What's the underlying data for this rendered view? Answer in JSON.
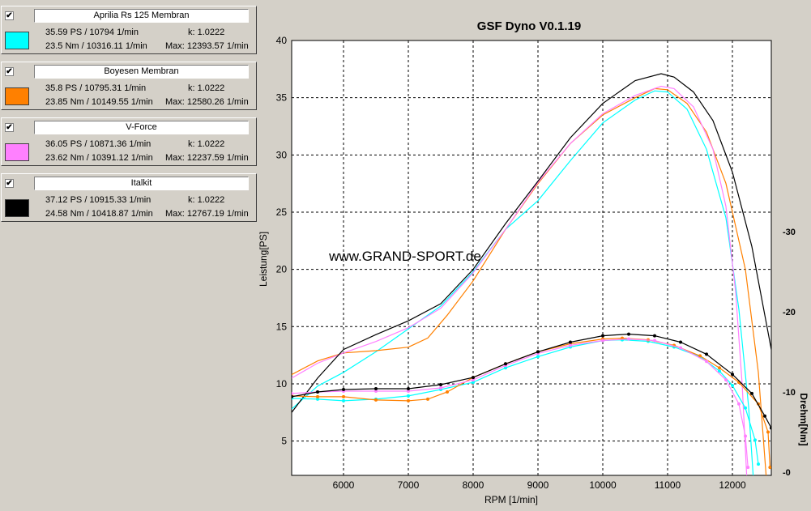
{
  "legend": [
    {
      "name": "Aprilia Rs 125 Membran",
      "checked": "✔",
      "power": "35.59 PS / 10794 1/min",
      "k": "k: 1.0222",
      "torque": "23.5 Nm / 10316.11 1/min",
      "max": "Max: 12393.57 1/min",
      "color": "#00ffff"
    },
    {
      "name": "Boyesen Membran",
      "checked": "✔",
      "power": "35.8 PS / 10795.31 1/min",
      "k": "k: 1.0222",
      "torque": "23.85 Nm / 10149.55 1/min",
      "max": "Max: 12580.26 1/min",
      "color": "#ff8000"
    },
    {
      "name": "V-Force",
      "checked": "✔",
      "power": "36.05 PS / 10871.36 1/min",
      "k": "k: 1.0222",
      "torque": "23.62 Nm / 10391.12 1/min",
      "max": "Max: 12237.59 1/min",
      "color": "#ff80ff"
    },
    {
      "name": "Italkit",
      "checked": "✔",
      "power": "37.12 PS / 10915.33 1/min",
      "k": "k: 1.0222",
      "torque": "24.58 Nm / 10418.87 1/min",
      "max": "Max: 12767.19 1/min",
      "color": "#000000"
    }
  ],
  "chart_data": {
    "type": "line",
    "title": "GSF Dyno V0.1.19",
    "xlabel": "RPM [1/min]",
    "ylabel": "Leistung[PS]",
    "y2label": "Drehm[Nm]",
    "watermark": "www.GRAND-SPORT.de",
    "xlim": [
      5200,
      12600
    ],
    "ylim": [
      2,
      40
    ],
    "y2lim": [
      -0.4,
      53.8
    ],
    "xticks": [
      "6000",
      "7000",
      "8000",
      "9000",
      "10000",
      "11000",
      "12000"
    ],
    "yticks": [
      "5",
      "10",
      "15",
      "20",
      "25",
      "30",
      "35",
      "40"
    ],
    "y2ticks": [
      "-0",
      "-10",
      "-20",
      "-30"
    ],
    "grid": true,
    "power_series": [
      {
        "color": "#00ffff",
        "points": [
          [
            5200,
            7.8
          ],
          [
            5600,
            9.8
          ],
          [
            6000,
            11.0
          ],
          [
            6500,
            12.8
          ],
          [
            7000,
            14.8
          ],
          [
            7500,
            16.8
          ],
          [
            8000,
            19.8
          ],
          [
            8500,
            23.5
          ],
          [
            9000,
            26.0
          ],
          [
            9500,
            29.5
          ],
          [
            10000,
            32.8
          ],
          [
            10500,
            34.8
          ],
          [
            10800,
            35.6
          ],
          [
            11000,
            35.5
          ],
          [
            11300,
            34.0
          ],
          [
            11600,
            30.5
          ],
          [
            11900,
            24.5
          ],
          [
            12100,
            16.5
          ],
          [
            12250,
            8.0
          ],
          [
            12320,
            2.0
          ]
        ]
      },
      {
        "color": "#ff8000",
        "points": [
          [
            5200,
            10.8
          ],
          [
            5600,
            12.0
          ],
          [
            6000,
            12.7
          ],
          [
            6500,
            12.9
          ],
          [
            7000,
            13.2
          ],
          [
            7300,
            14.0
          ],
          [
            7600,
            16.0
          ],
          [
            8000,
            19.0
          ],
          [
            8500,
            23.5
          ],
          [
            9000,
            27.5
          ],
          [
            9500,
            31.0
          ],
          [
            10000,
            33.5
          ],
          [
            10500,
            35.0
          ],
          [
            10800,
            35.8
          ],
          [
            11000,
            35.7
          ],
          [
            11300,
            34.5
          ],
          [
            11600,
            32.0
          ],
          [
            11900,
            27.5
          ],
          [
            12200,
            20.0
          ],
          [
            12400,
            11.0
          ],
          [
            12520,
            2.0
          ]
        ]
      },
      {
        "color": "#ff80ff",
        "points": [
          [
            5200,
            10.5
          ],
          [
            5600,
            11.8
          ],
          [
            6000,
            12.7
          ],
          [
            6500,
            13.7
          ],
          [
            7000,
            14.9
          ],
          [
            7500,
            16.6
          ],
          [
            8000,
            19.7
          ],
          [
            8500,
            23.5
          ],
          [
            9000,
            27.6
          ],
          [
            9500,
            31.0
          ],
          [
            10000,
            33.6
          ],
          [
            10500,
            35.2
          ],
          [
            10900,
            36.0
          ],
          [
            11100,
            35.8
          ],
          [
            11400,
            34.2
          ],
          [
            11700,
            30.5
          ],
          [
            11900,
            25.5
          ],
          [
            12050,
            18.0
          ],
          [
            12150,
            10.0
          ],
          [
            12220,
            2.0
          ]
        ]
      },
      {
        "color": "#000000",
        "points": [
          [
            5200,
            7.5
          ],
          [
            5600,
            10.5
          ],
          [
            6000,
            13.0
          ],
          [
            6500,
            14.3
          ],
          [
            7000,
            15.5
          ],
          [
            7500,
            17.0
          ],
          [
            8000,
            20.0
          ],
          [
            8500,
            24.0
          ],
          [
            9000,
            27.7
          ],
          [
            9500,
            31.5
          ],
          [
            10000,
            34.5
          ],
          [
            10500,
            36.5
          ],
          [
            10900,
            37.1
          ],
          [
            11100,
            36.8
          ],
          [
            11400,
            35.5
          ],
          [
            11700,
            33.0
          ],
          [
            12000,
            28.5
          ],
          [
            12300,
            22.0
          ],
          [
            12500,
            16.0
          ],
          [
            12600,
            13.0
          ]
        ]
      }
    ],
    "torque_series": [
      {
        "color": "#00ffff",
        "points": [
          [
            5200,
            9.2
          ],
          [
            5600,
            9.1
          ],
          [
            6000,
            8.9
          ],
          [
            6500,
            9.1
          ],
          [
            7000,
            9.5
          ],
          [
            7500,
            10.3
          ],
          [
            8000,
            11.2
          ],
          [
            8500,
            13.0
          ],
          [
            9000,
            14.4
          ],
          [
            9500,
            15.6
          ],
          [
            10000,
            16.4
          ],
          [
            10300,
            16.5
          ],
          [
            10700,
            16.3
          ],
          [
            11100,
            15.6
          ],
          [
            11500,
            14.4
          ],
          [
            11800,
            12.6
          ],
          [
            12000,
            10.8
          ],
          [
            12200,
            8.0
          ],
          [
            12350,
            4.0
          ],
          [
            12400,
            1.0
          ]
        ]
      },
      {
        "color": "#ff8000",
        "points": [
          [
            5200,
            9.5
          ],
          [
            5600,
            9.4
          ],
          [
            6000,
            9.4
          ],
          [
            6500,
            9.0
          ],
          [
            7000,
            8.9
          ],
          [
            7300,
            9.1
          ],
          [
            7600,
            10.0
          ],
          [
            8000,
            11.8
          ],
          [
            8500,
            13.5
          ],
          [
            9000,
            15.0
          ],
          [
            9500,
            16.0
          ],
          [
            10000,
            16.6
          ],
          [
            10300,
            16.7
          ],
          [
            10700,
            16.5
          ],
          [
            11100,
            15.8
          ],
          [
            11500,
            14.5
          ],
          [
            11800,
            13.0
          ],
          [
            12100,
            11.2
          ],
          [
            12400,
            8.5
          ],
          [
            12550,
            5.0
          ],
          [
            12580,
            0.6
          ]
        ]
      },
      {
        "color": "#ff80ff",
        "points": [
          [
            5200,
            9.8
          ],
          [
            5600,
            10.0
          ],
          [
            6000,
            10.1
          ],
          [
            6500,
            10.1
          ],
          [
            7000,
            10.1
          ],
          [
            7500,
            10.5
          ],
          [
            8000,
            11.5
          ],
          [
            8500,
            13.3
          ],
          [
            9000,
            14.8
          ],
          [
            9500,
            15.8
          ],
          [
            10000,
            16.4
          ],
          [
            10400,
            16.6
          ],
          [
            10800,
            16.4
          ],
          [
            11200,
            15.5
          ],
          [
            11600,
            13.8
          ],
          [
            11900,
            11.5
          ],
          [
            12100,
            8.5
          ],
          [
            12200,
            4.5
          ],
          [
            12240,
            0.6
          ]
        ]
      },
      {
        "color": "#000000",
        "points": [
          [
            5200,
            9.4
          ],
          [
            5600,
            10.0
          ],
          [
            6000,
            10.3
          ],
          [
            6500,
            10.4
          ],
          [
            7000,
            10.4
          ],
          [
            7500,
            10.9
          ],
          [
            8000,
            11.8
          ],
          [
            8500,
            13.5
          ],
          [
            9000,
            15.0
          ],
          [
            9500,
            16.2
          ],
          [
            10000,
            17.0
          ],
          [
            10400,
            17.2
          ],
          [
            10800,
            17.0
          ],
          [
            11200,
            16.2
          ],
          [
            11600,
            14.7
          ],
          [
            12000,
            12.2
          ],
          [
            12300,
            9.8
          ],
          [
            12500,
            7.0
          ],
          [
            12600,
            5.5
          ]
        ]
      }
    ]
  }
}
